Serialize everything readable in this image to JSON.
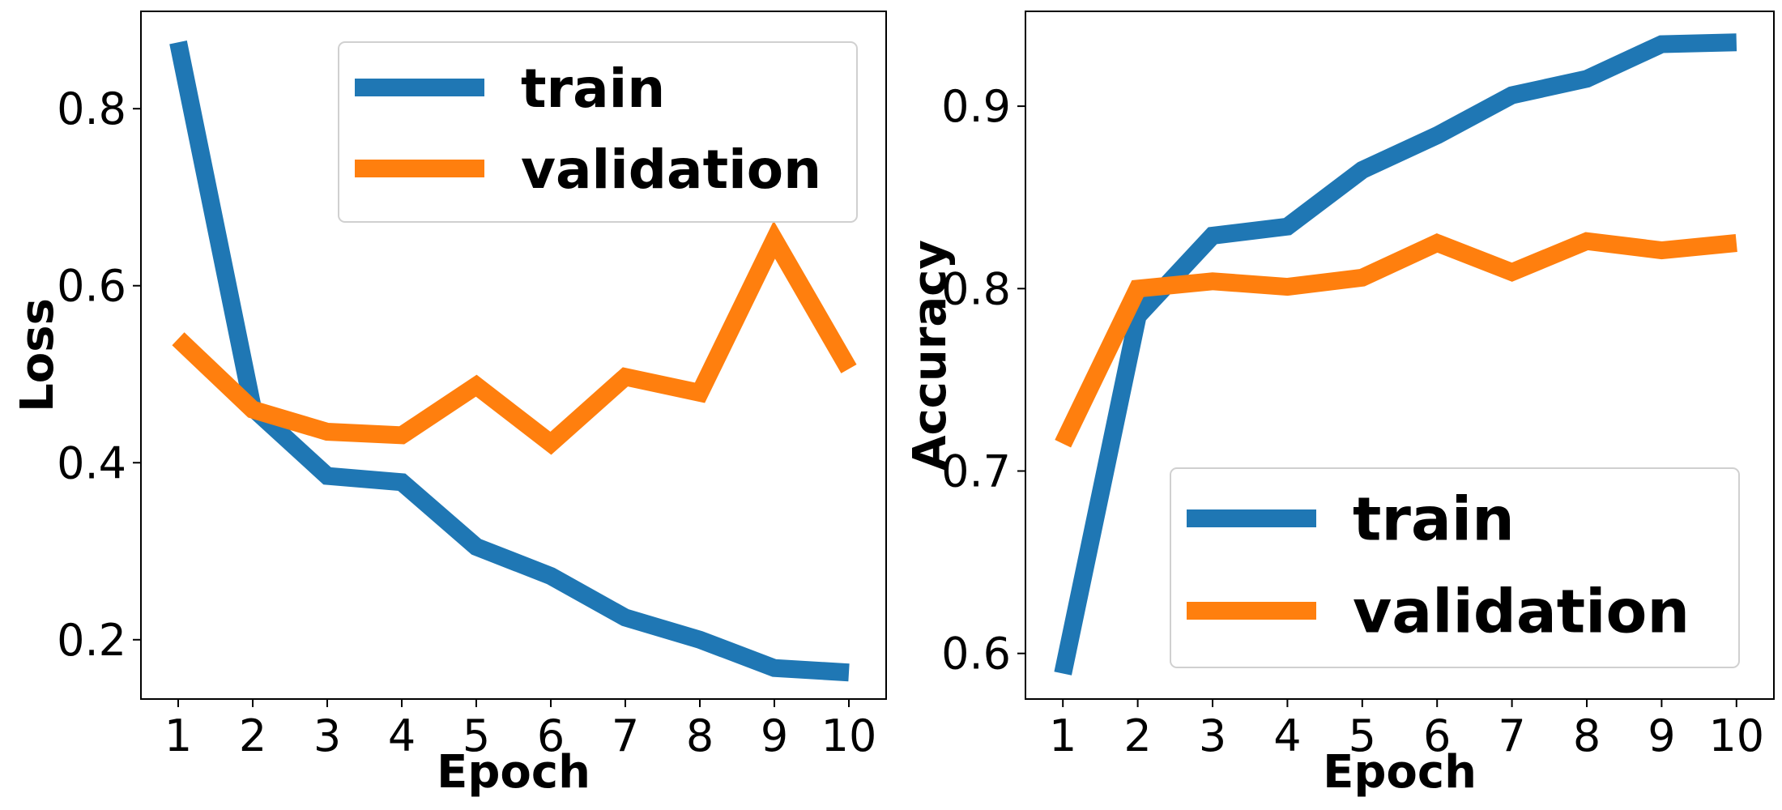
{
  "chart_data": [
    {
      "type": "line",
      "title": "",
      "xlabel": "Epoch",
      "ylabel": "Loss",
      "x": [
        1,
        2,
        3,
        4,
        5,
        6,
        7,
        8,
        9,
        10
      ],
      "xticks": [
        "1",
        "2",
        "3",
        "4",
        "5",
        "6",
        "7",
        "8",
        "9",
        "10"
      ],
      "yticks": [
        0.2,
        0.4,
        0.6,
        0.8
      ],
      "ytick_labels": [
        "0.2",
        "0.4",
        "0.6",
        "0.8"
      ],
      "xlim": [
        0.5,
        10.5
      ],
      "ylim": [
        0.133,
        0.91
      ],
      "legend_position": "upper-right",
      "series": [
        {
          "name": "train",
          "color": "#1f77b4",
          "values": [
            0.875,
            0.462,
            0.385,
            0.378,
            0.305,
            0.272,
            0.225,
            0.2,
            0.168,
            0.163
          ]
        },
        {
          "name": "validation",
          "color": "#ff7f0e",
          "values": [
            0.54,
            0.46,
            0.435,
            0.431,
            0.487,
            0.422,
            0.497,
            0.479,
            0.652,
            0.506
          ]
        }
      ]
    },
    {
      "type": "line",
      "title": "",
      "xlabel": "Epoch",
      "ylabel": "Accuracy",
      "x": [
        1,
        2,
        3,
        4,
        5,
        6,
        7,
        8,
        9,
        10
      ],
      "xticks": [
        "1",
        "2",
        "3",
        "4",
        "5",
        "6",
        "7",
        "8",
        "9",
        "10"
      ],
      "yticks": [
        0.6,
        0.7,
        0.8,
        0.9
      ],
      "ytick_labels": [
        "0.6",
        "0.7",
        "0.8",
        "0.9"
      ],
      "xlim": [
        0.5,
        10.5
      ],
      "ylim": [
        0.575,
        0.952
      ],
      "legend_position": "lower-right",
      "series": [
        {
          "name": "train",
          "color": "#1f77b4",
          "values": [
            0.589,
            0.785,
            0.829,
            0.834,
            0.865,
            0.884,
            0.906,
            0.915,
            0.934,
            0.935
          ]
        },
        {
          "name": "validation",
          "color": "#ff7f0e",
          "values": [
            0.715,
            0.8,
            0.804,
            0.801,
            0.806,
            0.825,
            0.809,
            0.826,
            0.821,
            0.825
          ]
        }
      ]
    }
  ]
}
